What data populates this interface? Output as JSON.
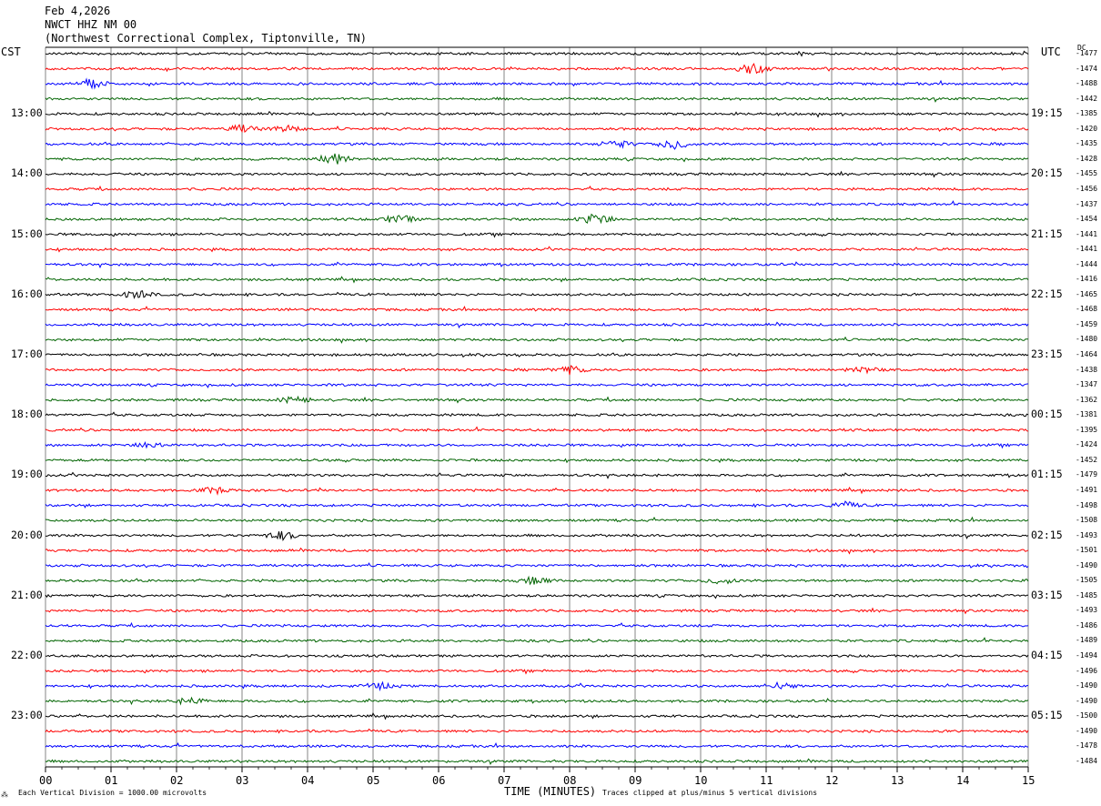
{
  "header": {
    "date": "Feb 4,2026",
    "station": "NWCT HHZ NM 00",
    "location": "(Northwest Correctional Complex, Tiptonville, TN)"
  },
  "labels": {
    "left_tz": "CST",
    "right_tz": "UTC",
    "dc_header": "DC"
  },
  "footer": {
    "scale_note": "Each Vertical Division = 1000.00 microvolts",
    "xlabel": "TIME (MINUTES)",
    "clip_note": "Traces clipped at plus/minus 5 vertical divisions",
    "corner_mark": "⁂"
  },
  "colors": {
    "trace_cycle": [
      "#000000",
      "#ff0000",
      "#0000ff",
      "#006400"
    ],
    "grid": "#000000"
  },
  "chart_data": {
    "type": "line",
    "title": "NWCT HHZ NM 00",
    "xlabel": "TIME (MINUTES)",
    "xlim": [
      0,
      15
    ],
    "x_ticks": [
      "00",
      "01",
      "02",
      "03",
      "04",
      "05",
      "06",
      "07",
      "08",
      "09",
      "10",
      "11",
      "12",
      "13",
      "14",
      "15"
    ],
    "trace_count": 48,
    "left_time_labels": [
      "13:00",
      "14:00",
      "15:00",
      "16:00",
      "17:00",
      "18:00",
      "19:00",
      "20:00",
      "21:00",
      "22:00",
      "23:00"
    ],
    "right_time_labels": [
      "19:15",
      "20:15",
      "21:15",
      "22:15",
      "23:15",
      "00:15",
      "01:15",
      "02:15",
      "03:15",
      "04:15",
      "05:15"
    ],
    "time_label_rows": [
      4,
      8,
      12,
      16,
      20,
      24,
      28,
      32,
      36,
      40,
      44
    ],
    "dc_offsets": [
      "-1477",
      "-1474",
      "-1488",
      "-1442",
      "-1385",
      "-1420",
      "-1435",
      "-1428",
      "-1455",
      "-1456",
      "-1437",
      "-1454",
      "-1441",
      "-1441",
      "-1444",
      "-1416",
      "-1465",
      "-1468",
      "-1459",
      "-1480",
      "-1464",
      "-1438",
      "-1347",
      "-1362",
      "-1381",
      "-1395",
      "-1424",
      "-1452",
      "-1479",
      "-1491",
      "-1498",
      "-1508",
      "-1493",
      "-1501",
      "-1490",
      "-1505",
      "-1485",
      "-1493",
      "-1486",
      "-1489",
      "-1494",
      "-1496",
      "-1490",
      "-1490",
      "-1500",
      "-1490",
      "-1478",
      "-1484"
    ],
    "events": [
      {
        "trace": 1,
        "minute": 10.8,
        "amp": 5
      },
      {
        "trace": 2,
        "minute": 0.7,
        "amp": 5
      },
      {
        "trace": 5,
        "minute": 3.0,
        "amp": 4
      },
      {
        "trace": 5,
        "minute": 3.7,
        "amp": 3
      },
      {
        "trace": 6,
        "minute": 8.7,
        "amp": 4
      },
      {
        "trace": 6,
        "minute": 9.6,
        "amp": 5
      },
      {
        "trace": 7,
        "minute": 4.4,
        "amp": 6
      },
      {
        "trace": 11,
        "minute": 8.4,
        "amp": 6
      },
      {
        "trace": 11,
        "minute": 5.4,
        "amp": 4
      },
      {
        "trace": 16,
        "minute": 1.4,
        "amp": 4
      },
      {
        "trace": 21,
        "minute": 8.0,
        "amp": 4
      },
      {
        "trace": 21,
        "minute": 12.5,
        "amp": 3
      },
      {
        "trace": 23,
        "minute": 3.8,
        "amp": 3
      },
      {
        "trace": 26,
        "minute": 1.6,
        "amp": 3
      },
      {
        "trace": 29,
        "minute": 2.6,
        "amp": 3
      },
      {
        "trace": 30,
        "minute": 12.2,
        "amp": 3
      },
      {
        "trace": 32,
        "minute": 3.6,
        "amp": 4
      },
      {
        "trace": 35,
        "minute": 7.5,
        "amp": 4
      },
      {
        "trace": 35,
        "minute": 10.3,
        "amp": 3
      },
      {
        "trace": 42,
        "minute": 5.1,
        "amp": 3
      },
      {
        "trace": 42,
        "minute": 11.2,
        "amp": 3
      },
      {
        "trace": 43,
        "minute": 2.2,
        "amp": 3
      }
    ]
  }
}
